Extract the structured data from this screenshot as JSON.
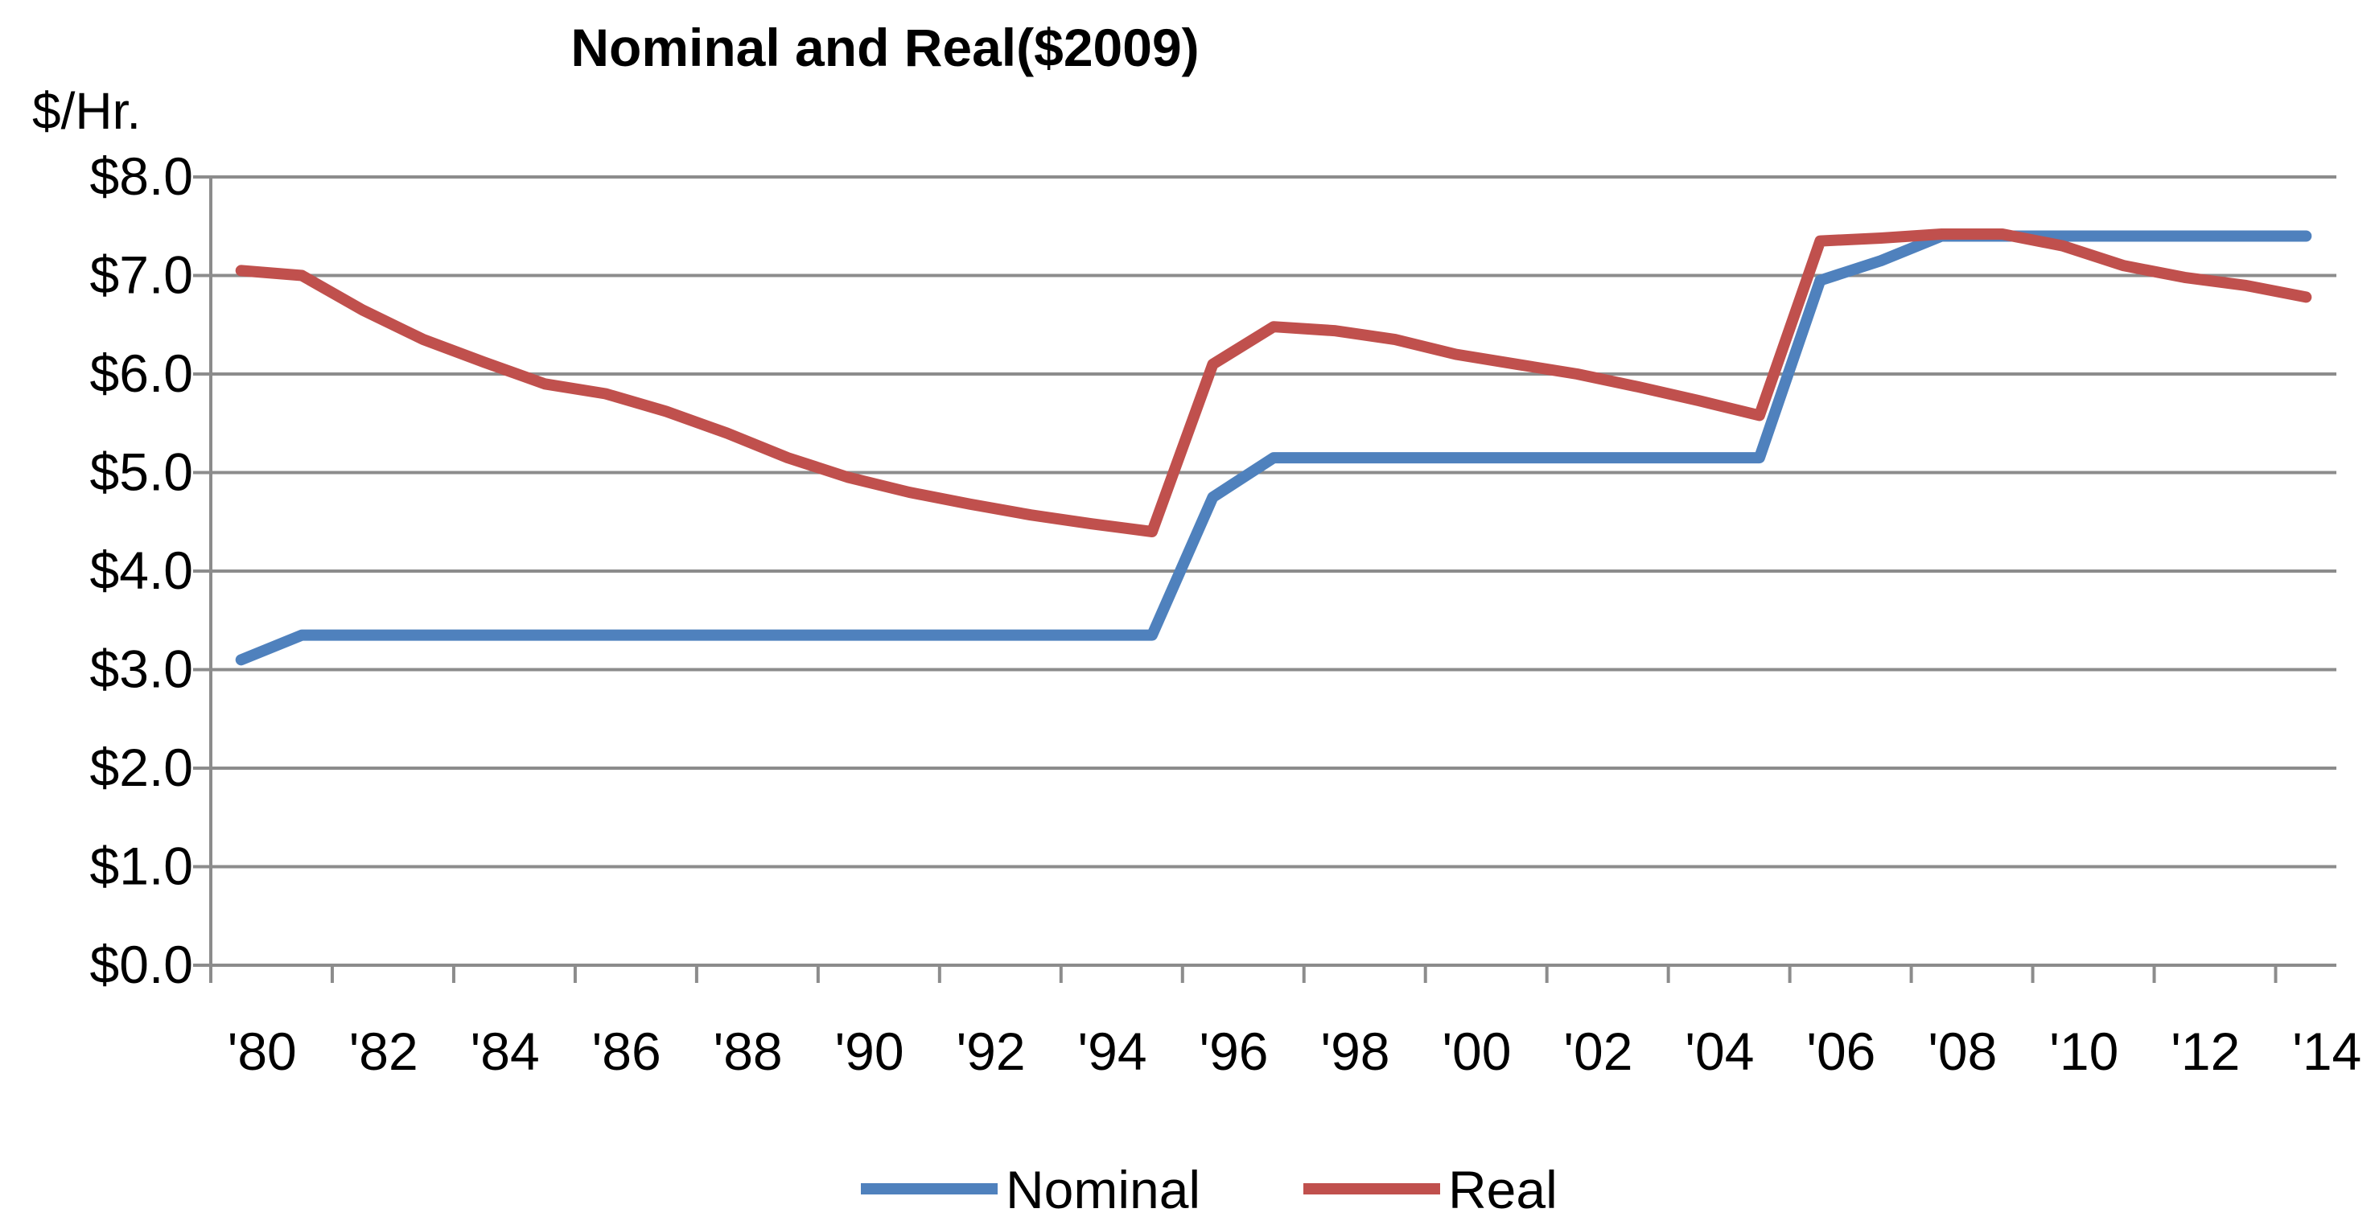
{
  "chart_data": {
    "type": "line",
    "title": "Nominal and Real($2009)",
    "ylabel": "$/Hr.",
    "xlabel": "",
    "ylim": [
      0,
      8
    ],
    "y_ticks": [
      "$0.0",
      "$1.0",
      "$2.0",
      "$3.0",
      "$4.0",
      "$5.0",
      "$6.0",
      "$7.0",
      "$8.0"
    ],
    "x_tick_labels": [
      "'80",
      "'82",
      "'84",
      "'86",
      "'88",
      "'90",
      "'92",
      "'94",
      "'96",
      "'98",
      "'00",
      "'02",
      "'04",
      "'06",
      "'08",
      "'10",
      "'12",
      "'14"
    ],
    "x": [
      1980,
      1981,
      1982,
      1983,
      1984,
      1985,
      1986,
      1987,
      1988,
      1989,
      1990,
      1991,
      1992,
      1993,
      1994,
      1995,
      1996,
      1997,
      1998,
      1999,
      2000,
      2001,
      2002,
      2003,
      2004,
      2005,
      2006,
      2007,
      2008,
      2009,
      2010,
      2011,
      2012,
      2013,
      2014
    ],
    "grid": true,
    "legend_position": "bottom",
    "series": [
      {
        "name": "Nominal",
        "color": "#4f81bd",
        "values": [
          3.1,
          3.35,
          3.35,
          3.35,
          3.35,
          3.35,
          3.35,
          3.35,
          3.35,
          3.35,
          3.35,
          3.35,
          3.35,
          3.35,
          3.35,
          3.35,
          4.75,
          5.15,
          5.15,
          5.15,
          5.15,
          5.15,
          5.15,
          5.15,
          5.15,
          5.15,
          6.95,
          7.15,
          7.4,
          7.4,
          7.4,
          7.4,
          7.4,
          7.4,
          7.4
        ]
      },
      {
        "name": "Real",
        "color": "#c0504d",
        "values": [
          7.05,
          7.0,
          6.65,
          6.35,
          6.12,
          5.9,
          5.8,
          5.62,
          5.4,
          5.15,
          4.95,
          4.8,
          4.68,
          4.57,
          4.48,
          4.4,
          6.1,
          6.48,
          6.44,
          6.35,
          6.2,
          6.1,
          6.0,
          5.87,
          5.73,
          5.58,
          7.35,
          7.38,
          7.42,
          7.42,
          7.3,
          7.1,
          6.98,
          6.9,
          6.78
        ]
      }
    ]
  }
}
